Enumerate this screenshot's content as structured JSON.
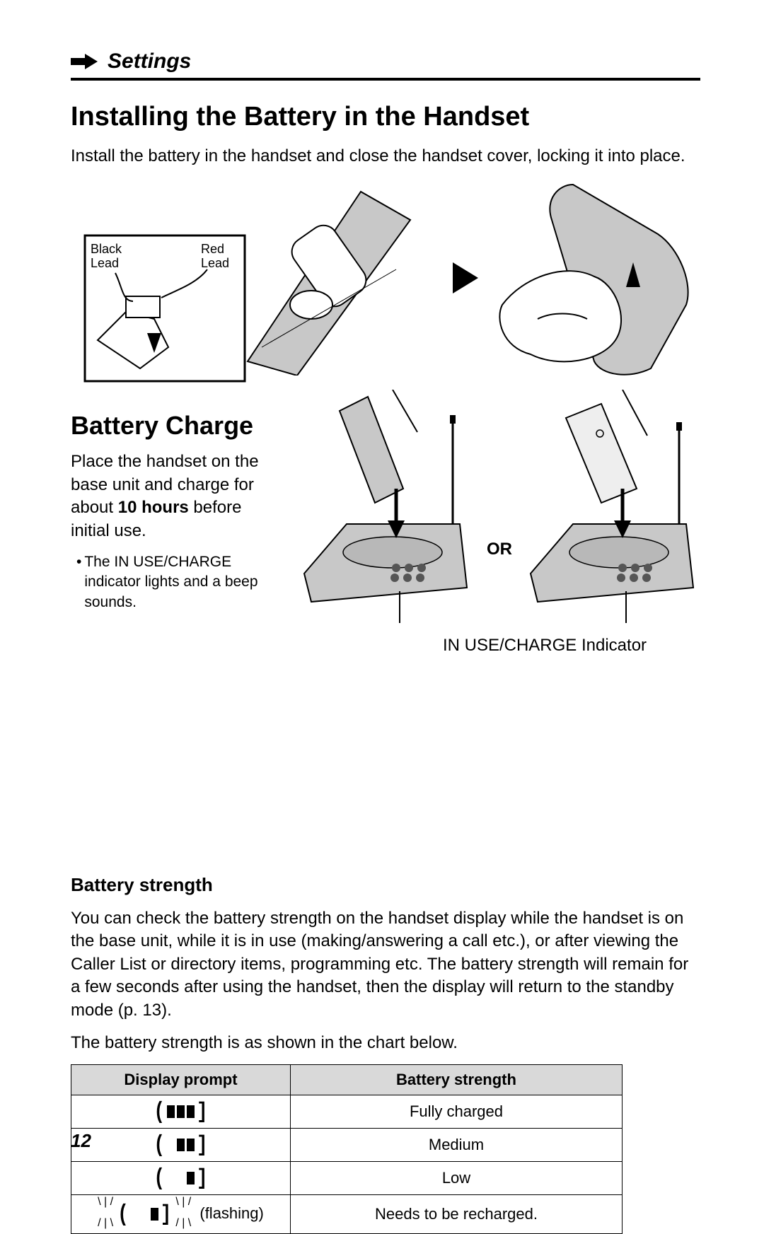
{
  "section": {
    "title": "Settings"
  },
  "install": {
    "heading": "Installing the Battery in the Handset",
    "text": "Install the battery in the handset and close the handset cover, locking it into place.",
    "black_lead": "Black\nLead",
    "red_lead": "Red\nLead"
  },
  "charge": {
    "heading": "Battery Charge",
    "text_pre": "Place the handset on the base unit and charge for about ",
    "text_bold": "10 hours",
    "text_post": " before initial use.",
    "bullet": "The IN USE/CHARGE indicator lights and a beep sounds.",
    "or": "OR",
    "indicator_label": "IN USE/CHARGE Indicator"
  },
  "strength": {
    "heading": "Battery strength",
    "para1": "You can check the battery strength on the handset display while the handset is on the base unit, while it is in use (making/answering a call etc.), or after viewing the Caller List or directory items, programming etc. The battery strength will remain for a few seconds after using the handset, then the display will return to the standby mode (p. 13).",
    "para2": "The battery strength is as shown in the chart below.",
    "table": {
      "col_prompt": "Display prompt",
      "col_strength": "Battery strength",
      "rows": [
        {
          "bars": 3,
          "flashing": false,
          "suffix": "",
          "strength": "Fully charged"
        },
        {
          "bars": 2,
          "flashing": false,
          "suffix": "",
          "strength": "Medium"
        },
        {
          "bars": 1,
          "flashing": false,
          "suffix": "",
          "strength": "Low"
        },
        {
          "bars": 1,
          "flashing": true,
          "suffix": "(flashing)",
          "strength": "Needs to be recharged."
        }
      ]
    }
  },
  "page_number": "12",
  "colors": {
    "text": "#000000",
    "background": "#ffffff",
    "table_header_bg": "#d9d9d9",
    "illustration_fill": "#c8c8c8"
  }
}
